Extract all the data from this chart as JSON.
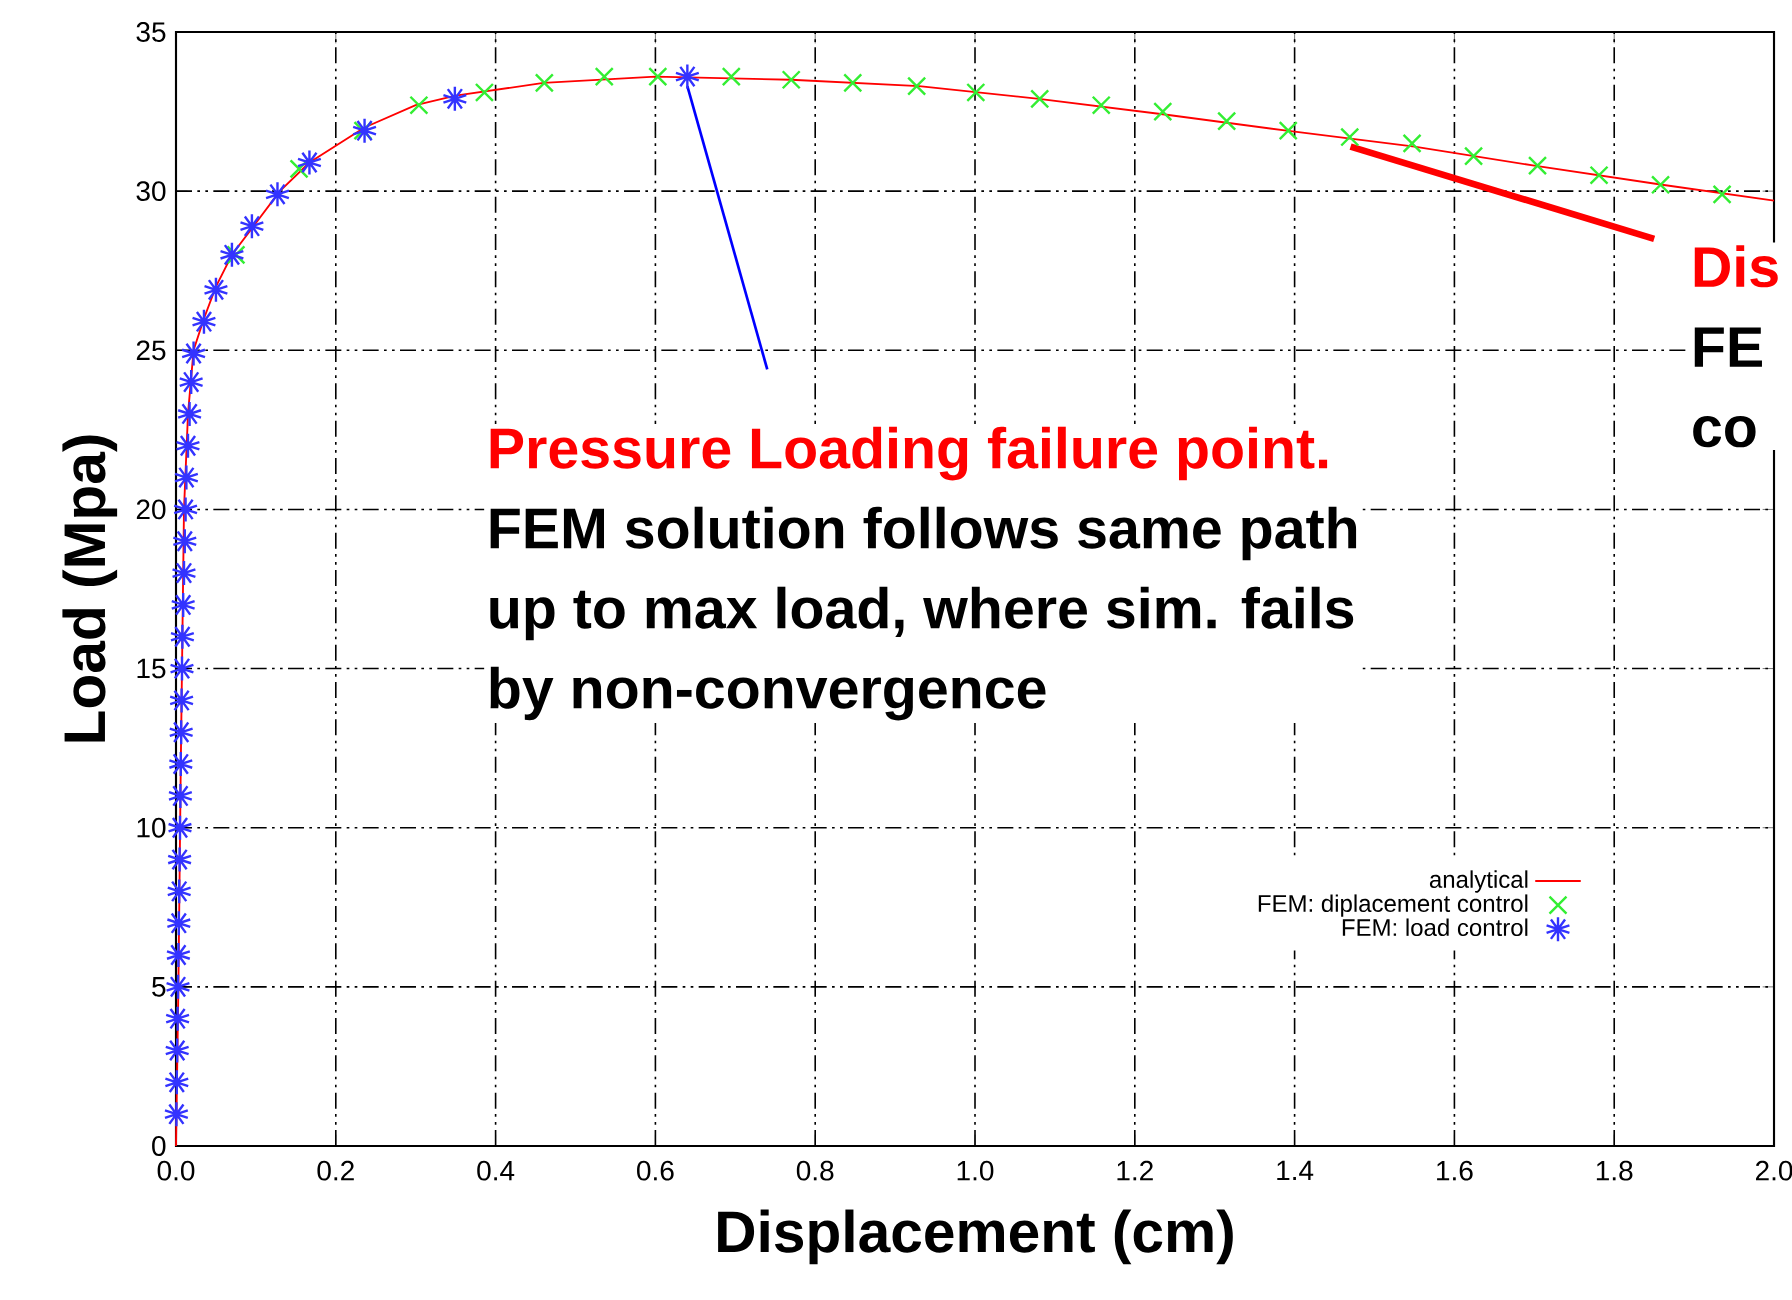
{
  "chart_data": {
    "type": "line",
    "xlabel": "Displacement (cm)",
    "ylabel": "Load (Mpa)",
    "xlim": [
      0,
      2.0
    ],
    "ylim": [
      0,
      35
    ],
    "xticks": [
      {
        "value": 0,
        "label": "0.0"
      },
      0.2,
      0.4,
      0.6,
      0.8,
      {
        "value": 1,
        "label": "1.0"
      },
      1.2,
      1.4,
      1.6,
      1.8,
      {
        "value": 2,
        "label": "2.0"
      }
    ],
    "yticks": [
      0,
      5,
      10,
      15,
      20,
      25,
      30,
      35
    ],
    "grid": true,
    "legend": "bottom right",
    "series": [
      {
        "name": "analytical",
        "color": "#ff0000",
        "line_style": "solid",
        "marker": "none",
        "x": [
          0,
          0.003,
          0.006,
          0.01,
          0.015,
          0.022,
          0.035,
          0.05,
          0.07,
          0.1,
          0.13,
          0.167,
          0.236,
          0.3,
          0.35,
          0.46,
          0.6,
          0.77,
          0.93,
          1.08,
          1.24,
          1.39,
          1.55,
          1.7,
          1.86,
          2.0
        ],
        "values": [
          0,
          5,
          12,
          20,
          23,
          25,
          26,
          27,
          28,
          29,
          30,
          30.9,
          32,
          32.7,
          33,
          33.4,
          33.6,
          33.5,
          33.3,
          32.9,
          32.4,
          31.9,
          31.4,
          30.8,
          30.2,
          29.7
        ]
      },
      {
        "name": "FEM: diplacement control",
        "type": "scatter",
        "color": "#33ee33",
        "marker": "cross",
        "x": [
          0.075,
          0.154,
          0.234,
          0.304,
          0.386,
          0.461,
          0.536,
          0.603,
          0.695,
          0.77,
          0.847,
          0.927,
          1.001,
          1.081,
          1.158,
          1.235,
          1.315,
          1.392,
          1.469,
          1.547,
          1.624,
          1.704,
          1.781,
          1.858,
          1.935
        ],
        "values": [
          28.0,
          30.7,
          31.9,
          32.7,
          33.1,
          33.4,
          33.6,
          33.6,
          33.6,
          33.5,
          33.4,
          33.3,
          33.1,
          32.9,
          32.7,
          32.5,
          32.2,
          31.9,
          31.7,
          31.5,
          31.1,
          30.8,
          30.5,
          30.2,
          29.9
        ]
      },
      {
        "name": "FEM: load control",
        "type": "scatter",
        "color": "#3333ff",
        "x": [
          0.0005,
          0.001,
          0.0015,
          0.002,
          0.0025,
          0.003,
          0.0035,
          0.004,
          0.0045,
          0.005,
          0.0055,
          0.006,
          0.0065,
          0.007,
          0.0075,
          0.008,
          0.009,
          0.01,
          0.011,
          0.012,
          0.013,
          0.015,
          0.017,
          0.019,
          0.022,
          0.035,
          0.05,
          0.07,
          0.095,
          0.127,
          0.167,
          0.236,
          0.349,
          0.64
        ],
        "values": [
          1,
          2,
          3,
          4,
          5,
          6,
          7,
          8,
          9,
          10,
          11,
          12,
          13,
          14,
          15,
          16,
          17,
          18,
          19,
          20,
          21,
          22,
          23,
          24,
          24.9,
          25.9,
          26.9,
          28.0,
          28.9,
          29.9,
          30.9,
          31.9,
          32.9,
          33.6
        ]
      }
    ],
    "annotations": [
      {
        "text": "Pressure Loading failure point.",
        "x": 0.64,
        "y": 33.6
      },
      "FEM solution follows same path",
      "up to max load, where sim. fails",
      "by non-convergence",
      {
        "text": "Dis",
        "x": 1.47,
        "y": 31.7
      },
      "FE",
      "co"
    ]
  }
}
